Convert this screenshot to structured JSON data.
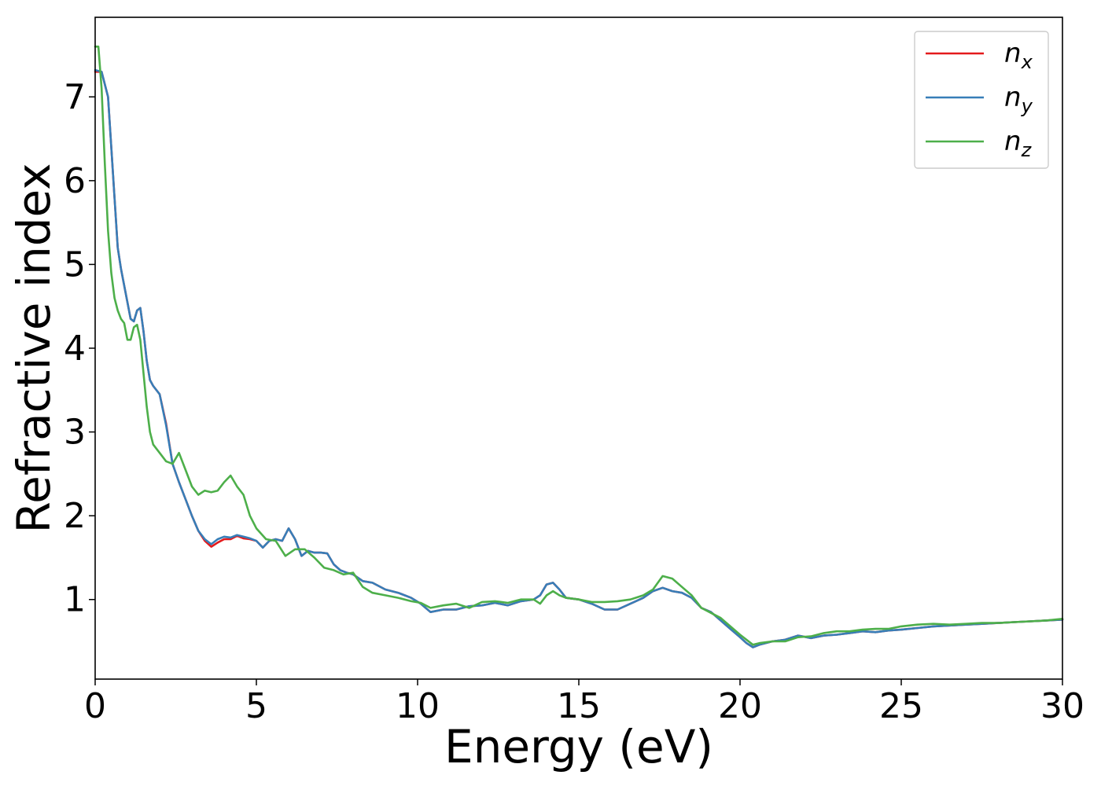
{
  "chart_data": {
    "type": "line",
    "xlabel": "Energy (eV)",
    "ylabel": "Refractive index",
    "xlim": [
      0,
      30
    ],
    "ylim": [
      0.05,
      7.95
    ],
    "x_ticks": [
      0,
      5,
      10,
      15,
      20,
      25,
      30
    ],
    "y_ticks": [
      1,
      2,
      3,
      4,
      5,
      6,
      7
    ],
    "grid": false,
    "legend_position": "top-right",
    "series": [
      {
        "name": "n",
        "subscript": "x",
        "color": "#e41a1c",
        "x": [
          0,
          0.2,
          0.4,
          0.5,
          0.6,
          0.7,
          0.8,
          0.9,
          1.0,
          1.1,
          1.2,
          1.3,
          1.4,
          1.5,
          1.6,
          1.7,
          1.8,
          2.0,
          2.2,
          2.4,
          2.6,
          2.8,
          3.0,
          3.2,
          3.4,
          3.6,
          3.8,
          4.0,
          4.2,
          4.4,
          4.6,
          4.8,
          5.0,
          5.2,
          5.4,
          5.6,
          5.8,
          6.0,
          6.2,
          6.4,
          6.6,
          6.8,
          7.0,
          7.2,
          7.4,
          7.6,
          7.8,
          8.0,
          8.3,
          8.6,
          9.0,
          9.4,
          9.8,
          10.1,
          10.4,
          10.8,
          11.2,
          11.6,
          12.0,
          12.4,
          12.8,
          13.2,
          13.6,
          13.8,
          14.0,
          14.2,
          14.4,
          14.6,
          15.0,
          15.4,
          15.8,
          16.2,
          16.6,
          17.0,
          17.3,
          17.6,
          17.9,
          18.2,
          18.5,
          18.8,
          19.1,
          19.4,
          19.7,
          20.0,
          20.2,
          20.4,
          20.6,
          21.0,
          21.4,
          21.8,
          22.2,
          22.6,
          23.0,
          23.4,
          23.8,
          24.2,
          24.6,
          25.0,
          25.5,
          26.0,
          26.5,
          27.0,
          27.5,
          28.0,
          28.5,
          29.0,
          29.5,
          30.0
        ],
        "y": [
          7.3,
          7.3,
          7.0,
          6.4,
          5.8,
          5.2,
          4.95,
          4.75,
          4.55,
          4.35,
          4.32,
          4.45,
          4.48,
          4.2,
          3.85,
          3.62,
          3.55,
          3.45,
          3.1,
          2.62,
          2.4,
          2.2,
          2.0,
          1.82,
          1.7,
          1.63,
          1.68,
          1.72,
          1.72,
          1.76,
          1.73,
          1.72,
          1.7,
          1.62,
          1.7,
          1.72,
          1.7,
          1.85,
          1.72,
          1.52,
          1.58,
          1.56,
          1.56,
          1.55,
          1.42,
          1.35,
          1.32,
          1.3,
          1.22,
          1.2,
          1.12,
          1.08,
          1.02,
          0.95,
          0.85,
          0.88,
          0.88,
          0.92,
          0.93,
          0.96,
          0.93,
          0.98,
          1.0,
          1.05,
          1.18,
          1.2,
          1.12,
          1.02,
          1.0,
          0.95,
          0.88,
          0.88,
          0.95,
          1.02,
          1.1,
          1.14,
          1.1,
          1.08,
          1.02,
          0.9,
          0.85,
          0.75,
          0.65,
          0.55,
          0.48,
          0.43,
          0.46,
          0.5,
          0.52,
          0.57,
          0.54,
          0.57,
          0.58,
          0.6,
          0.62,
          0.61,
          0.63,
          0.64,
          0.66,
          0.68,
          0.69,
          0.7,
          0.71,
          0.72,
          0.73,
          0.74,
          0.75,
          0.76
        ]
      },
      {
        "name": "n",
        "subscript": "y",
        "color": "#377eb8",
        "x": [
          0,
          0.2,
          0.4,
          0.5,
          0.6,
          0.7,
          0.8,
          0.9,
          1.0,
          1.1,
          1.2,
          1.3,
          1.4,
          1.5,
          1.6,
          1.7,
          1.8,
          2.0,
          2.2,
          2.4,
          2.6,
          2.8,
          3.0,
          3.2,
          3.4,
          3.6,
          3.8,
          4.0,
          4.2,
          4.4,
          4.6,
          4.8,
          5.0,
          5.2,
          5.4,
          5.6,
          5.8,
          6.0,
          6.2,
          6.4,
          6.6,
          6.8,
          7.0,
          7.2,
          7.4,
          7.6,
          7.8,
          8.0,
          8.3,
          8.6,
          9.0,
          9.4,
          9.8,
          10.1,
          10.4,
          10.8,
          11.2,
          11.6,
          12.0,
          12.4,
          12.8,
          13.2,
          13.6,
          13.8,
          14.0,
          14.2,
          14.4,
          14.6,
          15.0,
          15.4,
          15.8,
          16.2,
          16.6,
          17.0,
          17.3,
          17.6,
          17.9,
          18.2,
          18.5,
          18.8,
          19.1,
          19.4,
          19.7,
          20.0,
          20.2,
          20.4,
          20.6,
          21.0,
          21.4,
          21.8,
          22.2,
          22.6,
          23.0,
          23.4,
          23.8,
          24.2,
          24.6,
          25.0,
          25.5,
          26.0,
          26.5,
          27.0,
          27.5,
          28.0,
          28.5,
          29.0,
          29.5,
          30.0
        ],
        "y": [
          7.32,
          7.3,
          7.0,
          6.4,
          5.8,
          5.2,
          4.95,
          4.75,
          4.55,
          4.35,
          4.32,
          4.45,
          4.48,
          4.2,
          3.85,
          3.62,
          3.55,
          3.45,
          3.08,
          2.62,
          2.4,
          2.2,
          2.0,
          1.82,
          1.72,
          1.66,
          1.72,
          1.75,
          1.74,
          1.77,
          1.75,
          1.73,
          1.7,
          1.62,
          1.7,
          1.72,
          1.7,
          1.85,
          1.72,
          1.52,
          1.58,
          1.56,
          1.56,
          1.55,
          1.42,
          1.35,
          1.32,
          1.3,
          1.22,
          1.2,
          1.12,
          1.08,
          1.02,
          0.95,
          0.85,
          0.88,
          0.88,
          0.92,
          0.93,
          0.96,
          0.93,
          0.98,
          1.0,
          1.05,
          1.18,
          1.2,
          1.12,
          1.02,
          1.0,
          0.95,
          0.88,
          0.88,
          0.95,
          1.02,
          1.1,
          1.14,
          1.1,
          1.08,
          1.02,
          0.9,
          0.85,
          0.75,
          0.65,
          0.55,
          0.48,
          0.43,
          0.46,
          0.5,
          0.52,
          0.57,
          0.54,
          0.57,
          0.58,
          0.6,
          0.62,
          0.61,
          0.63,
          0.64,
          0.66,
          0.68,
          0.69,
          0.7,
          0.71,
          0.72,
          0.73,
          0.74,
          0.75,
          0.76
        ]
      },
      {
        "name": "n",
        "subscript": "z",
        "color": "#4daf4a",
        "x": [
          0,
          0.1,
          0.2,
          0.3,
          0.4,
          0.5,
          0.6,
          0.7,
          0.8,
          0.9,
          1.0,
          1.1,
          1.2,
          1.3,
          1.4,
          1.5,
          1.6,
          1.7,
          1.8,
          2.0,
          2.2,
          2.4,
          2.6,
          2.8,
          3.0,
          3.2,
          3.4,
          3.6,
          3.8,
          4.0,
          4.2,
          4.4,
          4.6,
          4.8,
          5.0,
          5.3,
          5.6,
          5.9,
          6.2,
          6.5,
          6.8,
          7.1,
          7.4,
          7.7,
          8.0,
          8.3,
          8.6,
          9.0,
          9.4,
          9.8,
          10.1,
          10.4,
          10.8,
          11.2,
          11.6,
          12.0,
          12.4,
          12.8,
          13.2,
          13.6,
          13.8,
          14.0,
          14.2,
          14.4,
          14.6,
          15.0,
          15.4,
          15.8,
          16.2,
          16.6,
          17.0,
          17.3,
          17.6,
          17.9,
          18.2,
          18.5,
          18.8,
          19.1,
          19.4,
          19.7,
          20.0,
          20.2,
          20.4,
          20.6,
          21.0,
          21.4,
          21.8,
          22.2,
          22.6,
          23.0,
          23.4,
          23.8,
          24.2,
          24.6,
          25.0,
          25.5,
          26.0,
          26.5,
          27.0,
          27.5,
          28.0,
          28.5,
          29.0,
          29.5,
          30.0
        ],
        "y": [
          7.6,
          7.6,
          7.1,
          6.2,
          5.4,
          4.9,
          4.6,
          4.45,
          4.35,
          4.3,
          4.1,
          4.1,
          4.25,
          4.28,
          4.1,
          3.7,
          3.3,
          3.0,
          2.85,
          2.75,
          2.65,
          2.62,
          2.75,
          2.55,
          2.35,
          2.25,
          2.3,
          2.28,
          2.3,
          2.4,
          2.48,
          2.35,
          2.25,
          2.0,
          1.85,
          1.72,
          1.7,
          1.52,
          1.6,
          1.6,
          1.5,
          1.38,
          1.35,
          1.3,
          1.32,
          1.15,
          1.08,
          1.05,
          1.02,
          0.98,
          0.96,
          0.9,
          0.93,
          0.95,
          0.9,
          0.97,
          0.98,
          0.96,
          1.0,
          1.0,
          0.95,
          1.05,
          1.1,
          1.05,
          1.02,
          1.0,
          0.97,
          0.97,
          0.98,
          1.0,
          1.05,
          1.12,
          1.28,
          1.25,
          1.15,
          1.05,
          0.9,
          0.84,
          0.78,
          0.68,
          0.58,
          0.52,
          0.46,
          0.48,
          0.5,
          0.5,
          0.55,
          0.56,
          0.6,
          0.62,
          0.62,
          0.64,
          0.65,
          0.65,
          0.68,
          0.7,
          0.71,
          0.7,
          0.71,
          0.72,
          0.72,
          0.73,
          0.74,
          0.75,
          0.77
        ]
      }
    ]
  }
}
